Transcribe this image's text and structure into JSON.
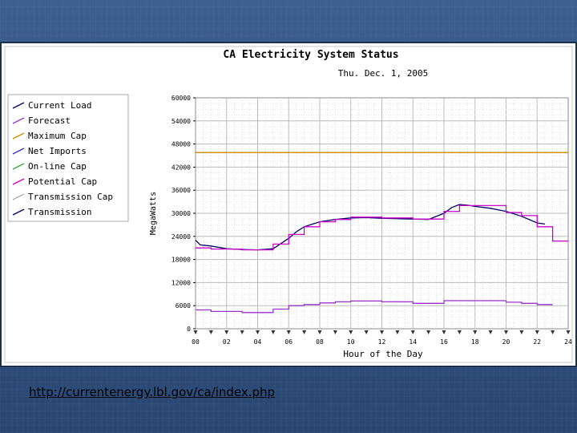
{
  "source": {
    "url_text": "http://currentenergy.lbl.gov/ca/index.php"
  },
  "chart_data": {
    "type": "line",
    "title": "CA Electricity System Status",
    "subtitle": "Thu. Dec. 1, 2005",
    "xlabel": "Hour of the Day",
    "ylabel": "MegaWatts",
    "xlim": [
      0,
      24
    ],
    "ylim": [
      0,
      60000
    ],
    "x_ticks": [
      "00",
      "02",
      "04",
      "06",
      "08",
      "10",
      "12",
      "14",
      "16",
      "18",
      "20",
      "22",
      "24"
    ],
    "y_ticks": [
      "60000",
      "54000",
      "48000",
      "42000",
      "36000",
      "30000",
      "24000",
      "18000",
      "12000",
      "6000",
      "0"
    ],
    "grid": true,
    "legend_position": "left",
    "legend": [
      {
        "label": "Current Load",
        "color": "#000066"
      },
      {
        "label": "Forecast",
        "color": "#9933cc"
      },
      {
        "label": "Maximum Cap",
        "color": "#cc8800"
      },
      {
        "label": "Net Imports",
        "color": "#3333cc"
      },
      {
        "label": "On-line Cap",
        "color": "#33aa33"
      },
      {
        "label": "Potential Cap",
        "color": "#cc00cc"
      },
      {
        "label": "Transmission Cap",
        "color": "#aaaaaa"
      },
      {
        "label": "Transmission",
        "color": "#000066"
      }
    ],
    "series": [
      {
        "name": "Current Load",
        "color": "#000066",
        "x": [
          0,
          0.3,
          1,
          2,
          3,
          4,
          5,
          6,
          6.5,
          7,
          8,
          9,
          10,
          11,
          12,
          13,
          14,
          15,
          16,
          16.5,
          17,
          17.5,
          18,
          19,
          20,
          21,
          22,
          22.5
        ],
        "y": [
          23000,
          21800,
          21500,
          20800,
          20600,
          20500,
          20800,
          23500,
          25200,
          26500,
          27800,
          28400,
          28800,
          28900,
          28700,
          28600,
          28500,
          28400,
          30000,
          31500,
          32300,
          32100,
          31800,
          31300,
          30500,
          29200,
          27500,
          27200
        ]
      },
      {
        "name": "Potential Cap",
        "color": "#cc00cc",
        "x": [
          0,
          1,
          1,
          3,
          3,
          5,
          5,
          6,
          6,
          7,
          7,
          8,
          8,
          9,
          9,
          10,
          10,
          12,
          12,
          14,
          14,
          16,
          16,
          17,
          17,
          20,
          20,
          21,
          21,
          22,
          22,
          23,
          23,
          24
        ],
        "y": [
          21000,
          21000,
          20700,
          20700,
          20500,
          20500,
          22000,
          22000,
          24500,
          24500,
          26500,
          26500,
          27800,
          27800,
          28400,
          28400,
          29000,
          29000,
          28800,
          28800,
          28500,
          28500,
          30500,
          30500,
          32000,
          32000,
          30200,
          30200,
          29400,
          29400,
          26500,
          26500,
          22800,
          22800
        ]
      },
      {
        "name": "Maximum Cap",
        "color": "#cc8800",
        "x": [
          0,
          24
        ],
        "y": [
          45800,
          45800
        ]
      },
      {
        "name": "Net Imports",
        "color": "#9933cc",
        "x": [
          0,
          1,
          1,
          3,
          3,
          5,
          5,
          6,
          6,
          7,
          7,
          8,
          8,
          9,
          9,
          10,
          10,
          12,
          12,
          14,
          14,
          16,
          16,
          20,
          20,
          21,
          21,
          22,
          22,
          23
        ],
        "y": [
          4900,
          4900,
          4500,
          4500,
          4200,
          4200,
          5100,
          5100,
          6000,
          6000,
          6300,
          6300,
          6700,
          6700,
          7000,
          7000,
          7200,
          7200,
          7000,
          7000,
          6600,
          6600,
          7300,
          7300,
          6900,
          6900,
          6600,
          6600,
          6300,
          6300
        ]
      }
    ]
  }
}
